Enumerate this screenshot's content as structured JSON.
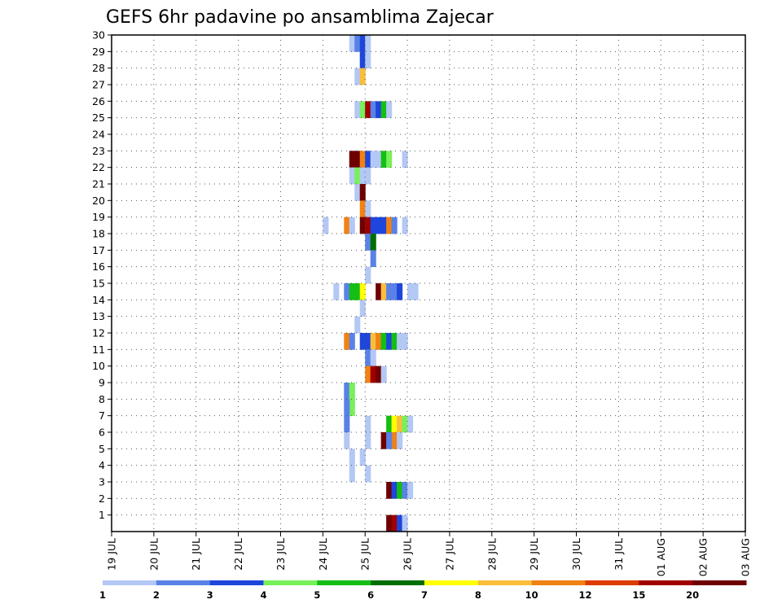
{
  "chart_data": {
    "type": "heatmap",
    "title": "GEFS 6hr padavine po ansamblima Zajecar",
    "xlabel": "",
    "ylabel": "",
    "x_tick_labels": [
      "19 JUL",
      "20 JUL",
      "21 JUL",
      "22 JUL",
      "23 JUL",
      "24 JUL",
      "25 JUL",
      "26 JUL",
      "27 JUL",
      "28 JUL",
      "29 JUL",
      "30 JUL",
      "31 JUL",
      "01 AUG",
      "02 AUG",
      "03 AUG"
    ],
    "x_range_6h_steps": [
      0,
      60
    ],
    "y_tick_labels": [
      "1",
      "2",
      "3",
      "4",
      "5",
      "6",
      "7",
      "8",
      "9",
      "10",
      "11",
      "12",
      "13",
      "14",
      "15",
      "16",
      "17",
      "18",
      "19",
      "20",
      "21",
      "22",
      "23",
      "24",
      "25",
      "26",
      "27",
      "28",
      "29",
      "30"
    ],
    "y_range": [
      0,
      30
    ],
    "grid": true,
    "colorbar": {
      "labels": [
        "1",
        "2",
        "3",
        "4",
        "5",
        "6",
        "7",
        "8",
        "10",
        "12",
        "15",
        "20"
      ],
      "colors": [
        "#b4c8f5",
        "#5a82e6",
        "#1e46dc",
        "#78f05a",
        "#14be14",
        "#006e00",
        "#ffff00",
        "#fabe3c",
        "#f08214",
        "#dc3c00",
        "#a00000",
        "#6e0000"
      ]
    },
    "cells": [
      [
        22.5,
        29,
        1
      ],
      [
        23,
        29,
        2
      ],
      [
        23.5,
        29,
        3
      ],
      [
        24,
        29,
        1
      ],
      [
        23.5,
        28,
        3
      ],
      [
        24,
        28,
        1
      ],
      [
        23,
        27,
        1
      ],
      [
        23.5,
        27,
        8
      ],
      [
        23,
        25,
        1
      ],
      [
        23.5,
        25,
        4
      ],
      [
        24,
        25,
        11
      ],
      [
        24.5,
        25,
        2
      ],
      [
        25,
        25,
        3
      ],
      [
        25.5,
        25,
        5
      ],
      [
        26,
        25,
        1
      ],
      [
        22.5,
        22,
        12
      ],
      [
        23,
        22,
        12
      ],
      [
        23.5,
        22,
        9
      ],
      [
        24,
        22,
        3
      ],
      [
        24.5,
        22,
        1
      ],
      [
        25,
        22,
        1
      ],
      [
        25.5,
        22,
        5
      ],
      [
        26,
        22,
        4
      ],
      [
        27.5,
        22,
        1
      ],
      [
        22.5,
        21,
        1
      ],
      [
        23,
        21,
        4
      ],
      [
        23.5,
        21,
        1
      ],
      [
        24,
        21,
        1
      ],
      [
        23,
        20,
        1
      ],
      [
        23.5,
        20,
        12
      ],
      [
        23.5,
        19,
        9
      ],
      [
        24,
        19,
        1
      ],
      [
        25.5,
        18,
        1
      ],
      [
        20,
        18,
        1
      ],
      [
        22,
        18,
        9
      ],
      [
        22.5,
        18,
        1
      ],
      [
        23.5,
        18,
        12
      ],
      [
        24,
        18,
        11
      ],
      [
        24.5,
        18,
        3
      ],
      [
        25,
        18,
        3
      ],
      [
        25.5,
        18,
        3
      ],
      [
        26,
        18,
        9
      ],
      [
        26.5,
        18,
        2
      ],
      [
        27.5,
        18,
        1
      ],
      [
        24,
        17,
        2
      ],
      [
        24.5,
        17,
        6
      ],
      [
        24.5,
        16,
        2
      ],
      [
        25,
        14,
        12
      ],
      [
        25.5,
        14,
        8
      ],
      [
        26,
        14,
        2
      ],
      [
        26.5,
        14,
        2
      ],
      [
        27,
        14,
        3
      ],
      [
        28,
        14,
        1
      ],
      [
        28.5,
        14,
        1
      ],
      [
        24,
        15,
        1
      ],
      [
        22,
        14,
        2
      ],
      [
        22.5,
        14,
        5
      ],
      [
        23,
        14,
        5
      ],
      [
        23.5,
        14,
        7
      ],
      [
        21,
        14,
        1
      ],
      [
        23.5,
        13,
        1
      ],
      [
        23,
        12,
        1
      ],
      [
        24,
        11,
        3
      ],
      [
        24.5,
        11,
        8
      ],
      [
        25,
        11,
        9
      ],
      [
        25.5,
        11,
        5
      ],
      [
        26,
        11,
        3
      ],
      [
        26.5,
        11,
        5
      ],
      [
        27,
        11,
        1
      ],
      [
        27.5,
        11,
        1
      ],
      [
        22,
        11,
        9
      ],
      [
        22.5,
        11,
        2
      ],
      [
        23.5,
        11,
        3
      ],
      [
        24,
        10,
        2
      ],
      [
        24.5,
        10,
        1
      ],
      [
        24,
        9,
        9
      ],
      [
        24.5,
        9,
        11
      ],
      [
        25,
        9,
        12
      ],
      [
        25.5,
        9,
        1
      ],
      [
        22,
        8,
        2
      ],
      [
        22.5,
        8,
        4
      ],
      [
        22.5,
        7,
        4
      ],
      [
        22,
        7,
        2
      ],
      [
        22,
        6,
        2
      ],
      [
        22,
        5,
        1
      ],
      [
        22.5,
        4,
        1
      ],
      [
        22.5,
        3,
        1
      ],
      [
        26,
        6,
        5
      ],
      [
        26.5,
        6,
        7
      ],
      [
        27,
        6,
        8
      ],
      [
        27.5,
        6,
        4
      ],
      [
        28,
        6,
        1
      ],
      [
        27,
        5,
        1
      ],
      [
        26.5,
        5,
        9
      ],
      [
        27,
        5,
        1
      ],
      [
        25.5,
        5,
        12
      ],
      [
        26,
        5,
        2
      ],
      [
        23.5,
        4,
        1
      ],
      [
        24,
        6,
        1
      ],
      [
        24,
        5,
        1
      ],
      [
        24,
        3,
        1
      ],
      [
        26,
        2,
        12
      ],
      [
        26.5,
        2,
        3
      ],
      [
        27,
        2,
        5
      ],
      [
        27.5,
        2,
        2
      ],
      [
        28,
        2,
        1
      ],
      [
        26,
        0,
        12
      ],
      [
        26.5,
        0,
        11
      ],
      [
        27,
        0,
        3
      ],
      [
        27.5,
        0,
        1
      ]
    ]
  }
}
